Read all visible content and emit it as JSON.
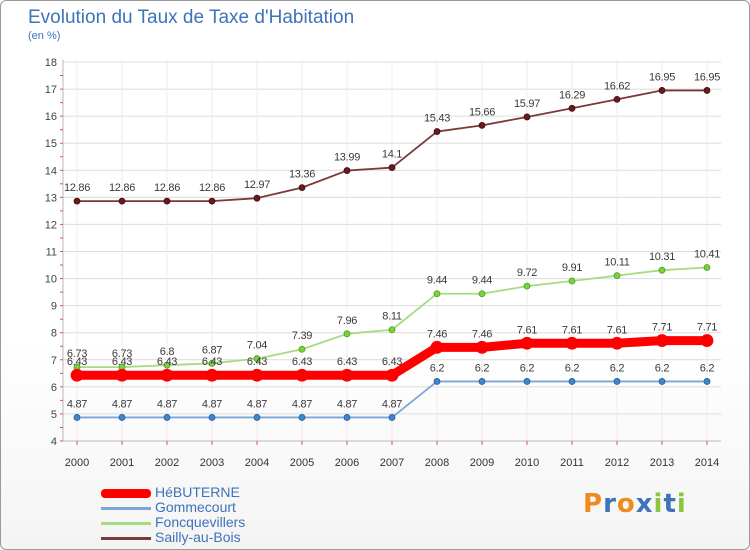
{
  "title": "Evolution du Taux de Taxe d'Habitation",
  "subtitle": "(en %)",
  "logo": {
    "text": "Proxiti",
    "colors": [
      "#f08a1c",
      "#3d73b8",
      "#f08a1c",
      "#3d73b8",
      "#8cc63f",
      "#3d73b8",
      "#8cc63f"
    ]
  },
  "chart_data": {
    "type": "line",
    "x": [
      2000,
      2001,
      2002,
      2003,
      2004,
      2005,
      2006,
      2007,
      2008,
      2009,
      2010,
      2011,
      2012,
      2013,
      2014
    ],
    "ylim": [
      4,
      18
    ],
    "yticks": [
      4,
      5,
      6,
      7,
      8,
      9,
      10,
      11,
      12,
      13,
      14,
      15,
      16,
      17,
      18
    ],
    "grid": true,
    "legend_position": "bottom-left",
    "series": [
      {
        "name": "HéBUTERNE",
        "color": "#ff0000",
        "values": [
          6.43,
          6.43,
          6.43,
          6.43,
          6.43,
          6.43,
          6.43,
          6.43,
          7.46,
          7.46,
          7.61,
          7.61,
          7.61,
          7.71,
          7.71
        ],
        "labels": [
          "6.43",
          "6.43",
          "6.43",
          "6.43",
          "6.43",
          "6.43",
          "6.43",
          "6.43",
          "7.46",
          "7.46",
          "7.61",
          "7.61",
          "7.61",
          "7.71",
          "7.71"
        ]
      },
      {
        "name": "Gommecourt",
        "color": "#7ba7d6",
        "values": [
          4.87,
          4.87,
          4.87,
          4.87,
          4.87,
          4.87,
          4.87,
          4.87,
          6.2,
          6.2,
          6.2,
          6.2,
          6.2,
          6.2,
          6.2
        ],
        "labels": [
          "4.87",
          "4.87",
          "4.87",
          "4.87",
          "4.87",
          "4.87",
          "4.87",
          "4.87",
          "6.2",
          "6.2",
          "6.2",
          "6.2",
          "6.2",
          "6.2",
          "6.2"
        ]
      },
      {
        "name": "Foncquevillers",
        "color": "#a6dc7f",
        "values": [
          6.73,
          6.73,
          6.8,
          6.87,
          7.04,
          7.39,
          7.96,
          8.11,
          9.44,
          9.44,
          9.72,
          9.91,
          10.11,
          10.31,
          10.41
        ],
        "labels": [
          "6.73",
          "6.73",
          "6.8",
          "6.87",
          "7.04",
          "7.39",
          "7.96",
          "8.11",
          "9.44",
          "9.44",
          "9.72",
          "9.91",
          "10.11",
          "10.31",
          "10.41"
        ]
      },
      {
        "name": "Sailly-au-Bois",
        "color": "#7a3a3a",
        "values": [
          12.86,
          12.86,
          12.86,
          12.86,
          12.97,
          13.36,
          13.99,
          14.1,
          15.43,
          15.66,
          15.97,
          16.29,
          16.62,
          16.95,
          16.95
        ],
        "labels": [
          "12.86",
          "12.86",
          "12.86",
          "12.86",
          "12.97",
          "13.36",
          "13.99",
          "14.1",
          "15.43",
          "15.66",
          "15.97",
          "16.29",
          "16.62",
          "16.95",
          "16.95"
        ]
      }
    ]
  }
}
